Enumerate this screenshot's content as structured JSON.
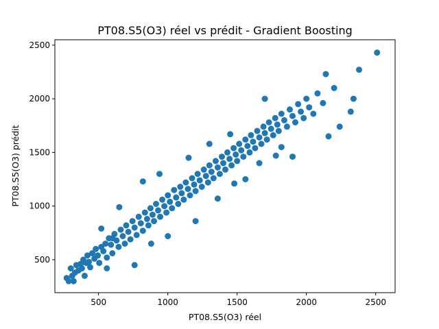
{
  "chart_data": {
    "type": "scatter",
    "title": "PT08.S5(O3) réel vs prédit - Gradient Boosting",
    "xlabel": "PT08.S5(O3) réel",
    "ylabel": "PT08.S5(O3) prédit",
    "xlim": [
      185,
      2640
    ],
    "ylim": [
      193,
      2550
    ],
    "xticks": [
      500,
      1000,
      1500,
      2000,
      2500
    ],
    "yticks": [
      500,
      1000,
      1500,
      2000,
      2500
    ],
    "xtick_labels": [
      "500",
      "1000",
      "1500",
      "2000",
      "2500"
    ],
    "ytick_labels": [
      "500",
      "1000",
      "1500",
      "2000",
      "2500"
    ],
    "grid": false,
    "legend": "none",
    "marker_color": "#1f77b4",
    "points": [
      [
        270,
        330
      ],
      [
        285,
        300
      ],
      [
        300,
        420
      ],
      [
        310,
        350
      ],
      [
        320,
        300
      ],
      [
        330,
        380
      ],
      [
        340,
        450
      ],
      [
        355,
        400
      ],
      [
        370,
        460
      ],
      [
        380,
        420
      ],
      [
        390,
        500
      ],
      [
        400,
        350
      ],
      [
        410,
        470
      ],
      [
        420,
        540
      ],
      [
        430,
        480
      ],
      [
        440,
        430
      ],
      [
        455,
        560
      ],
      [
        470,
        510
      ],
      [
        480,
        600
      ],
      [
        495,
        540
      ],
      [
        505,
        470
      ],
      [
        520,
        620
      ],
      [
        535,
        580
      ],
      [
        550,
        650
      ],
      [
        560,
        520
      ],
      [
        575,
        700
      ],
      [
        590,
        640
      ],
      [
        600,
        560
      ],
      [
        615,
        740
      ],
      [
        630,
        680
      ],
      [
        645,
        620
      ],
      [
        660,
        780
      ],
      [
        675,
        720
      ],
      [
        690,
        650
      ],
      [
        700,
        820
      ],
      [
        715,
        760
      ],
      [
        730,
        690
      ],
      [
        745,
        860
      ],
      [
        760,
        800
      ],
      [
        775,
        730
      ],
      [
        790,
        900
      ],
      [
        805,
        840
      ],
      [
        820,
        770
      ],
      [
        835,
        940
      ],
      [
        850,
        880
      ],
      [
        860,
        820
      ],
      [
        875,
        980
      ],
      [
        890,
        920
      ],
      [
        900,
        860
      ],
      [
        915,
        1020
      ],
      [
        930,
        960
      ],
      [
        945,
        900
      ],
      [
        960,
        1060
      ],
      [
        975,
        1000
      ],
      [
        990,
        940
      ],
      [
        1000,
        1100
      ],
      [
        1015,
        1040
      ],
      [
        1030,
        980
      ],
      [
        1045,
        1150
      ],
      [
        1060,
        1080
      ],
      [
        1075,
        1020
      ],
      [
        1090,
        1180
      ],
      [
        1100,
        1120
      ],
      [
        1115,
        1060
      ],
      [
        1130,
        1220
      ],
      [
        1145,
        1160
      ],
      [
        1160,
        1100
      ],
      [
        1175,
        1260
      ],
      [
        1190,
        1200
      ],
      [
        1200,
        1140
      ],
      [
        1215,
        1300
      ],
      [
        1230,
        1240
      ],
      [
        1245,
        1180
      ],
      [
        1260,
        1340
      ],
      [
        1275,
        1280
      ],
      [
        1290,
        1220
      ],
      [
        1300,
        1380
      ],
      [
        1315,
        1320
      ],
      [
        1330,
        1260
      ],
      [
        1345,
        1420
      ],
      [
        1360,
        1360
      ],
      [
        1375,
        1300
      ],
      [
        1390,
        1460
      ],
      [
        1400,
        1400
      ],
      [
        1415,
        1340
      ],
      [
        1430,
        1500
      ],
      [
        1445,
        1440
      ],
      [
        1460,
        1380
      ],
      [
        1475,
        1540
      ],
      [
        1490,
        1480
      ],
      [
        1500,
        1420
      ],
      [
        1515,
        1580
      ],
      [
        1530,
        1520
      ],
      [
        1545,
        1460
      ],
      [
        1560,
        1620
      ],
      [
        1575,
        1560
      ],
      [
        1590,
        1500
      ],
      [
        1600,
        1660
      ],
      [
        1615,
        1600
      ],
      [
        1630,
        1540
      ],
      [
        1645,
        1700
      ],
      [
        1660,
        1640
      ],
      [
        1675,
        1580
      ],
      [
        1690,
        1740
      ],
      [
        1700,
        1680
      ],
      [
        1715,
        1620
      ],
      [
        1730,
        1780
      ],
      [
        1745,
        1720
      ],
      [
        1760,
        1660
      ],
      [
        1775,
        1820
      ],
      [
        1790,
        1760
      ],
      [
        1800,
        1700
      ],
      [
        1820,
        1860
      ],
      [
        1840,
        1800
      ],
      [
        1860,
        1740
      ],
      [
        1880,
        1900
      ],
      [
        1900,
        1840
      ],
      [
        1920,
        1780
      ],
      [
        1940,
        1950
      ],
      [
        1960,
        1880
      ],
      [
        1980,
        1820
      ],
      [
        2000,
        2000
      ],
      [
        2020,
        1920
      ],
      [
        2050,
        1860
      ],
      [
        2080,
        2050
      ],
      [
        2120,
        1960
      ],
      [
        2140,
        2230
      ],
      [
        2160,
        1650
      ],
      [
        2200,
        2100
      ],
      [
        2240,
        1740
      ],
      [
        2320,
        1880
      ],
      [
        2340,
        2000
      ],
      [
        2380,
        2270
      ],
      [
        2510,
        2430
      ],
      [
        820,
        1230
      ],
      [
        650,
        990
      ],
      [
        1820,
        1550
      ],
      [
        1900,
        1460
      ],
      [
        1480,
        1210
      ],
      [
        1360,
        1070
      ],
      [
        1200,
        860
      ],
      [
        1000,
        720
      ],
      [
        880,
        650
      ],
      [
        760,
        450
      ],
      [
        600,
        700
      ],
      [
        520,
        790
      ],
      [
        940,
        1300
      ],
      [
        1300,
        1580
      ],
      [
        1700,
        2000
      ],
      [
        1450,
        1670
      ],
      [
        1150,
        1450
      ],
      [
        560,
        420
      ],
      [
        1780,
        1470
      ],
      [
        1660,
        1400
      ],
      [
        1560,
        1250
      ]
    ]
  }
}
